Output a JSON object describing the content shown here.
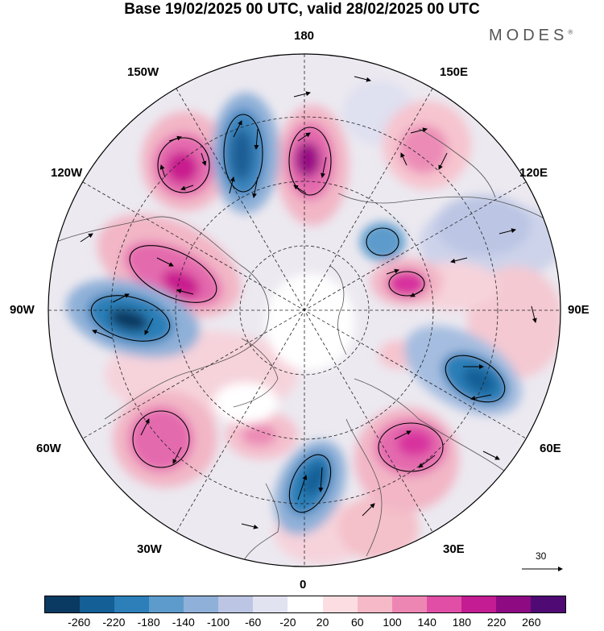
{
  "header": {
    "title": "Base 19/02/2025 00 UTC, valid 28/02/2025 00 UTC",
    "brand": "MODES"
  },
  "map": {
    "projection": "north polar stereographic",
    "longitude_labels": {
      "top": "180",
      "bottom": "0",
      "left": "90W",
      "right": "90E",
      "upper_left_1": "150W",
      "upper_left_2": "120W",
      "upper_right_1": "150E",
      "upper_right_2": "120E",
      "lower_left_1": "60W",
      "lower_left_2": "30W",
      "lower_right_1": "60E",
      "lower_right_2": "30E"
    },
    "reference_vector": {
      "value": "30"
    },
    "colors": {
      "coast": "#555555",
      "graticule": "#222222"
    }
  },
  "colorbar": {
    "colors": [
      "#0a3a62",
      "#135f96",
      "#2c7fb8",
      "#5d9bcc",
      "#8fb0d8",
      "#bcc6e4",
      "#e2e3f0",
      "#ffffff",
      "#fbdde2",
      "#f6b9c7",
      "#ee86b3",
      "#e04ea5",
      "#c41c92",
      "#8e0a83",
      "#4f0a74"
    ],
    "ticks": [
      "-260",
      "-220",
      "-180",
      "-140",
      "-100",
      "-60",
      "-20",
      "20",
      "60",
      "100",
      "140",
      "180",
      "220",
      "260"
    ]
  }
}
